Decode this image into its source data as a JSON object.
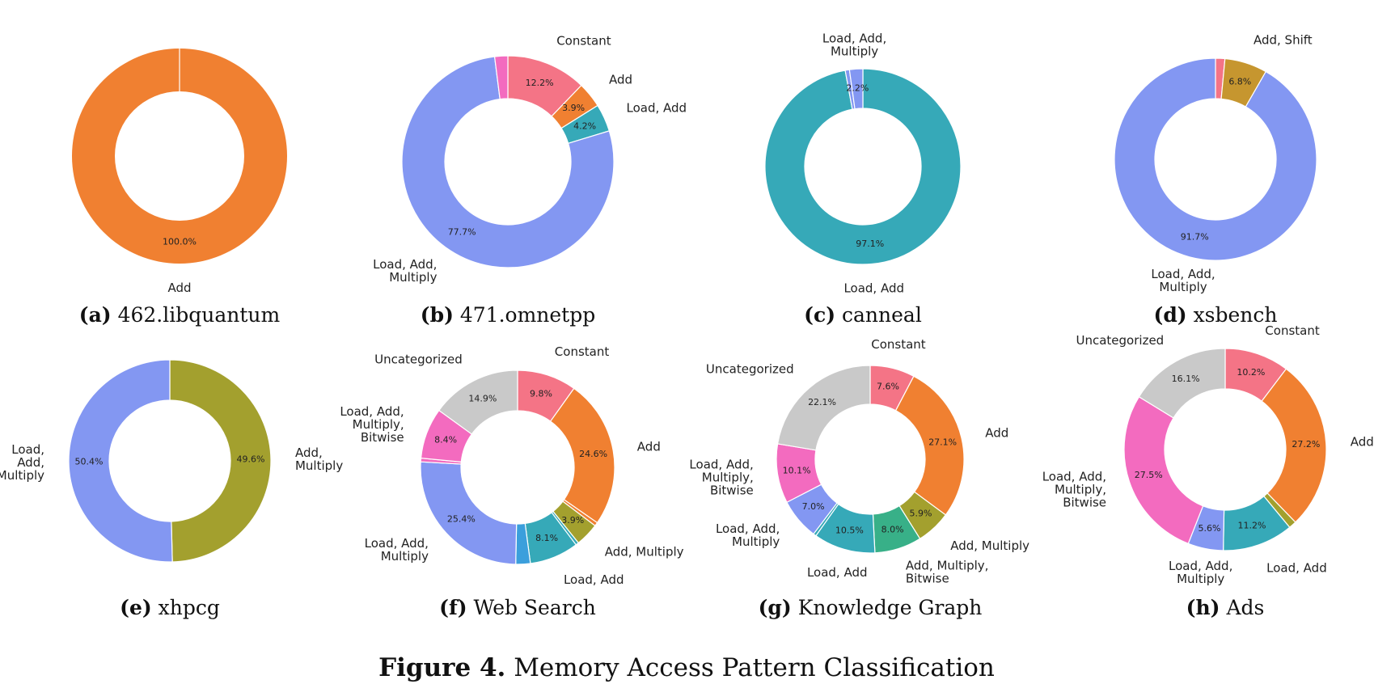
{
  "figure": {
    "label": "Figure 4.",
    "title": "Memory Access Pattern Classification"
  },
  "colors": {
    "Constant": "#f47486",
    "Add": "#f08031",
    "Load, Add": "#36a9b8",
    "Load, Add, Multiply": "#8397f2",
    "Add, Shift": "#c6962f",
    "Add, Multiply": "#a3a02e",
    "Uncategorized": "#c9c9c9",
    "Load, Add, Multiply, Bitwise": "#f36bbf",
    "Add, Multiply, Bitwise": "#38b088",
    "Other-Blue": "#3b9fdc"
  },
  "chart_data": [
    {
      "type": "pie",
      "letter": "(a)",
      "caption": "462.libquantum",
      "slices": [
        {
          "category": "Add",
          "value": 100.0,
          "pct_label": "100.0%",
          "label": "Add"
        }
      ]
    },
    {
      "type": "pie",
      "letter": "(b)",
      "caption": "471.omnetpp",
      "slices": [
        {
          "category": "Constant",
          "value": 12.2,
          "pct_label": "12.2%",
          "label": "Constant"
        },
        {
          "category": "Add",
          "value": 3.9,
          "pct_label": "3.9%",
          "label": "Add"
        },
        {
          "category": "Load, Add",
          "value": 4.2,
          "pct_label": "4.2%",
          "label": "Load, Add"
        },
        {
          "category": "Load, Add, Multiply",
          "value": 77.7,
          "pct_label": "77.7%",
          "label": "Load, Add,\nMultiply"
        },
        {
          "category": "Load, Add, Multiply, Bitwise",
          "value": 2.0,
          "pct_label": "",
          "label": ""
        }
      ]
    },
    {
      "type": "pie",
      "letter": "(c)",
      "caption": "canneal",
      "slices": [
        {
          "category": "Load, Add",
          "value": 97.1,
          "pct_label": "97.1%",
          "label": "Load, Add"
        },
        {
          "category": "Load, Add, Multiply",
          "value": 0.7,
          "pct_label": "",
          "label": ""
        },
        {
          "category": "Load, Add, Multiply",
          "value": 2.2,
          "pct_label": "2.2%",
          "label": "Load, Add,\nMultiply"
        }
      ]
    },
    {
      "type": "pie",
      "letter": "(d)",
      "caption": "xsbench",
      "slices": [
        {
          "category": "Constant",
          "value": 1.5,
          "pct_label": "",
          "label": ""
        },
        {
          "category": "Add, Shift",
          "value": 6.8,
          "pct_label": "6.8%",
          "label": "Add, Shift"
        },
        {
          "category": "Load, Add, Multiply",
          "value": 91.7,
          "pct_label": "91.7%",
          "label": "Load, Add,\nMultiply"
        }
      ]
    },
    {
      "type": "pie",
      "letter": "(e)",
      "caption": "xhpcg",
      "slices": [
        {
          "category": "Add, Multiply",
          "value": 49.6,
          "pct_label": "49.6%",
          "label": "Add,\nMultiply"
        },
        {
          "category": "Load, Add, Multiply",
          "value": 50.4,
          "pct_label": "50.4%",
          "label": "Load,\nAdd,\nMultiply"
        }
      ]
    },
    {
      "type": "pie",
      "letter": "(f)",
      "caption": "Web Search",
      "slices": [
        {
          "category": "Constant",
          "value": 9.8,
          "pct_label": "9.8%",
          "label": "Constant"
        },
        {
          "category": "Add",
          "value": 24.6,
          "pct_label": "24.6%",
          "label": "Add"
        },
        {
          "category": "Add",
          "value": 0.6,
          "pct_label": "",
          "label": ""
        },
        {
          "category": "Add, Multiply",
          "value": 3.9,
          "pct_label": "3.9%",
          "label": "Add, Multiply"
        },
        {
          "category": "Load, Add",
          "value": 0.5,
          "pct_label": "",
          "label": ""
        },
        {
          "category": "Load, Add",
          "value": 8.1,
          "pct_label": "8.1%",
          "label": "Load, Add"
        },
        {
          "category": "Other-Blue",
          "value": 2.4,
          "pct_label": "",
          "label": ""
        },
        {
          "category": "Load, Add, Multiply",
          "value": 25.4,
          "pct_label": "25.4%",
          "label": "Load, Add,\nMultiply"
        },
        {
          "category": "Load, Add, Multiply, Bitwise",
          "value": 0.6,
          "pct_label": "",
          "label": ""
        },
        {
          "category": "Load, Add, Multiply, Bitwise",
          "value": 8.4,
          "pct_label": "8.4%",
          "label": "Load, Add,\nMultiply,\nBitwise"
        },
        {
          "category": "Uncategorized",
          "value": 14.9,
          "pct_label": "14.9%",
          "label": "Uncategorized"
        }
      ]
    },
    {
      "type": "pie",
      "letter": "(g)",
      "caption": "Knowledge Graph",
      "slices": [
        {
          "category": "Constant",
          "value": 7.6,
          "pct_label": "7.6%",
          "label": "Constant"
        },
        {
          "category": "Add",
          "value": 27.1,
          "pct_label": "27.1%",
          "label": "Add"
        },
        {
          "category": "Add, Multiply",
          "value": 5.9,
          "pct_label": "5.9%",
          "label": "Add, Multiply"
        },
        {
          "category": "Add, Multiply, Bitwise",
          "value": 8.0,
          "pct_label": "8.0%",
          "label": "Add, Multiply,\nBitwise"
        },
        {
          "category": "Load, Add",
          "value": 10.5,
          "pct_label": "10.5%",
          "label": "Load, Add"
        },
        {
          "category": "Load, Add",
          "value": 0.5,
          "pct_label": "",
          "label": ""
        },
        {
          "category": "Load, Add, Multiply",
          "value": 7.0,
          "pct_label": "7.0%",
          "label": "Load, Add,\nMultiply"
        },
        {
          "category": "Load, Add, Multiply, Bitwise",
          "value": 10.1,
          "pct_label": "10.1%",
          "label": "Load, Add,\nMultiply,\nBitwise"
        },
        {
          "category": "Uncategorized",
          "value": 22.1,
          "pct_label": "22.1%",
          "label": "Uncategorized"
        }
      ]
    },
    {
      "type": "pie",
      "letter": "(h)",
      "caption": "Ads",
      "slices": [
        {
          "category": "Constant",
          "value": 10.2,
          "pct_label": "10.2%",
          "label": "Constant"
        },
        {
          "category": "Add",
          "value": 27.2,
          "pct_label": "27.2%",
          "label": "Add"
        },
        {
          "category": "Add, Multiply",
          "value": 1.2,
          "pct_label": "",
          "label": ""
        },
        {
          "category": "Load, Add",
          "value": 11.2,
          "pct_label": "11.2%",
          "label": "Load, Add"
        },
        {
          "category": "Load, Add, Multiply",
          "value": 5.6,
          "pct_label": "5.6%",
          "label": "Load, Add,\nMultiply"
        },
        {
          "category": "Load, Add, Multiply, Bitwise",
          "value": 27.5,
          "pct_label": "27.5%",
          "label": "Load, Add,\nMultiply,\nBitwise"
        },
        {
          "category": "Uncategorized",
          "value": 16.1,
          "pct_label": "16.1%",
          "label": "Uncategorized"
        }
      ]
    }
  ]
}
